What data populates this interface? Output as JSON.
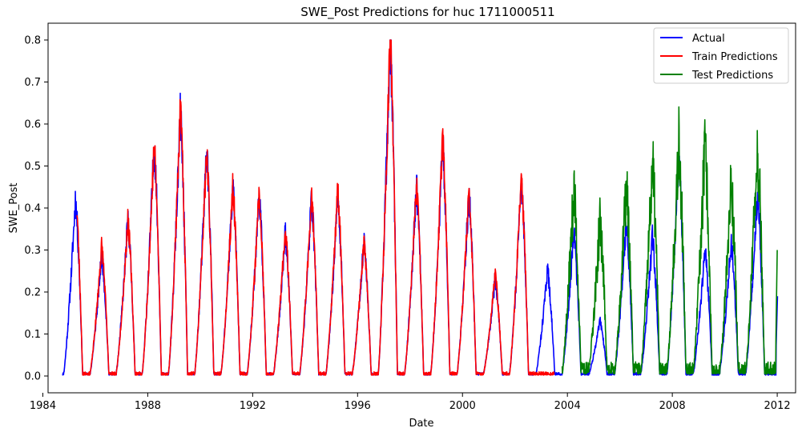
{
  "chart_data": {
    "type": "line",
    "title": "SWE_Post Predictions for huc 1711000511",
    "xlabel": "Date",
    "ylabel": "SWE_Post",
    "xlim": [
      1984.2,
      2012.7
    ],
    "ylim": [
      -0.04,
      0.84
    ],
    "x_ticks": [
      1984,
      1988,
      1992,
      1996,
      2000,
      2004,
      2008,
      2012
    ],
    "y_ticks": [
      0.0,
      0.1,
      0.2,
      0.3,
      0.4,
      0.5,
      0.6,
      0.7,
      0.8
    ],
    "y_tick_labels": [
      "0.0",
      "0.1",
      "0.2",
      "0.3",
      "0.4",
      "0.5",
      "0.6",
      "0.7",
      "0.8"
    ],
    "grid": false,
    "legend_position": "top-right",
    "series": [
      {
        "name": "Actual",
        "color": "#0000ff",
        "peaks": [
          {
            "year": 1985,
            "peak": 0.42,
            "early": 0.31
          },
          {
            "year": 1986,
            "peak": 0.29
          },
          {
            "year": 1987,
            "peak": 0.37
          },
          {
            "year": 1988,
            "peak": 0.55
          },
          {
            "year": 1989,
            "peak": 0.62
          },
          {
            "year": 1990,
            "peak": 0.54
          },
          {
            "year": 1991,
            "peak": 0.45
          },
          {
            "year": 1992,
            "peak": 0.43
          },
          {
            "year": 1993,
            "peak": 0.34
          },
          {
            "year": 1994,
            "peak": 0.42
          },
          {
            "year": 1995,
            "peak": 0.43
          },
          {
            "year": 1996,
            "peak": 0.32
          },
          {
            "year": 1997,
            "peak": 0.8
          },
          {
            "year": 1998,
            "peak": 0.45
          },
          {
            "year": 1999,
            "peak": 0.55
          },
          {
            "year": 2000,
            "peak": 0.43
          },
          {
            "year": 2001,
            "peak": 0.23
          },
          {
            "year": 2002,
            "peak": 0.46
          },
          {
            "year": 2003,
            "peak": 0.25
          },
          {
            "year": 2004,
            "peak": 0.34
          },
          {
            "year": 2005,
            "peak": 0.13
          },
          {
            "year": 2006,
            "peak": 0.36
          },
          {
            "year": 2007,
            "peak": 0.33
          },
          {
            "year": 2008,
            "peak": 0.52
          },
          {
            "year": 2009,
            "peak": 0.3
          },
          {
            "year": 2010,
            "peak": 0.32
          },
          {
            "year": 2011,
            "peak": 0.43
          }
        ],
        "end_value": 0.19
      },
      {
        "name": "Train Predictions",
        "color": "#ff0000",
        "x_range": [
          1985.3,
          2003.5
        ],
        "peaks": [
          {
            "year": 1985,
            "peak": 0.45
          },
          {
            "year": 1986,
            "peak": 0.31
          },
          {
            "year": 1987,
            "peak": 0.37
          },
          {
            "year": 1988,
            "peak": 0.55
          },
          {
            "year": 1989,
            "peak": 0.63
          },
          {
            "year": 1990,
            "peak": 0.53
          },
          {
            "year": 1991,
            "peak": 0.45
          },
          {
            "year": 1992,
            "peak": 0.43
          },
          {
            "year": 1993,
            "peak": 0.35
          },
          {
            "year": 1994,
            "peak": 0.43
          },
          {
            "year": 1995,
            "peak": 0.44
          },
          {
            "year": 1996,
            "peak": 0.32
          },
          {
            "year": 1997,
            "peak": 0.8
          },
          {
            "year": 1998,
            "peak": 0.45
          },
          {
            "year": 1999,
            "peak": 0.56
          },
          {
            "year": 2000,
            "peak": 0.43
          },
          {
            "year": 2001,
            "peak": 0.24
          },
          {
            "year": 2002,
            "peak": 0.47
          }
        ]
      },
      {
        "name": "Test Predictions",
        "color": "#008000",
        "x_range": [
          2003.8,
          2012.0
        ],
        "peaks": [
          {
            "year": 2004,
            "peak": 0.44
          },
          {
            "year": 2005,
            "peak": 0.37
          },
          {
            "year": 2006,
            "peak": 0.45
          },
          {
            "year": 2007,
            "peak": 0.5
          },
          {
            "year": 2008,
            "peak": 0.57
          },
          {
            "year": 2009,
            "peak": 0.54
          },
          {
            "year": 2010,
            "peak": 0.46
          },
          {
            "year": 2011,
            "peak": 0.55
          }
        ],
        "end_value": 0.3
      }
    ]
  }
}
